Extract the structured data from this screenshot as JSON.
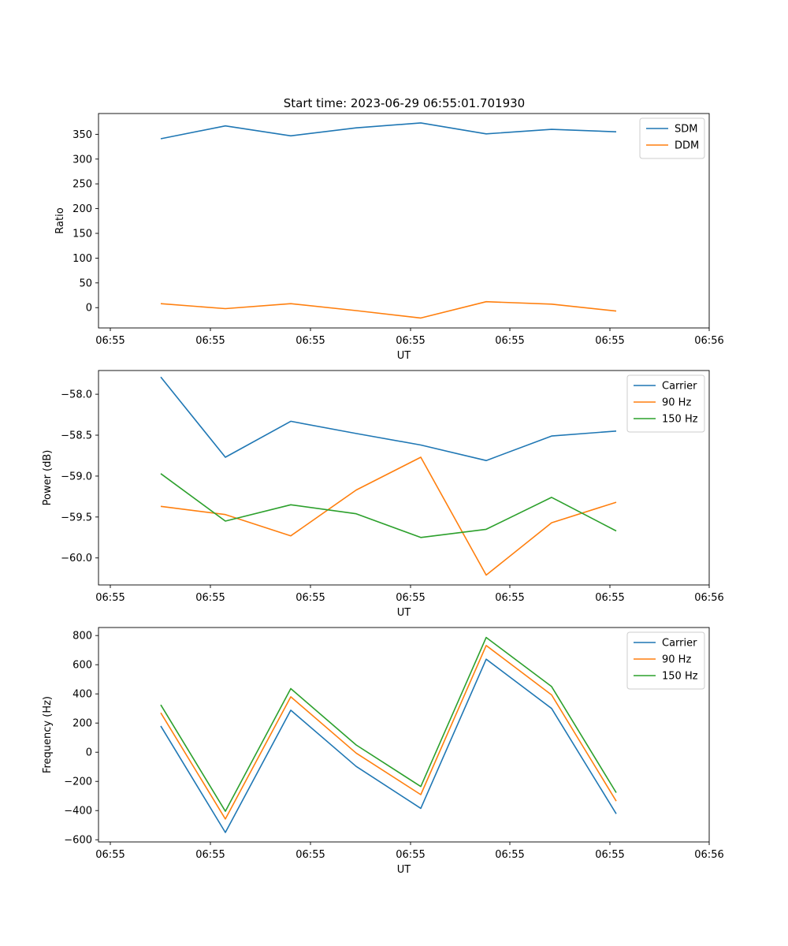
{
  "title": "Start time: 2023-06-29 06:55:01.701930",
  "colors": {
    "blue": "#1f77b4",
    "orange": "#ff7f0e",
    "green": "#2ca02c"
  },
  "chart_data": [
    {
      "type": "line",
      "title": "Start time: 2023-06-29 06:55:01.701930",
      "xlabel": "UT",
      "ylabel": "Ratio",
      "x_tick_labels": [
        "06:55",
        "06:55",
        "06:55",
        "06:55",
        "06:55",
        "06:55",
        "06:56"
      ],
      "y_ticks": [
        0,
        50,
        100,
        150,
        200,
        250,
        300,
        350
      ],
      "y_tick_labels": [
        "0",
        "50",
        "100",
        "150",
        "200",
        "250",
        "300",
        "350"
      ],
      "ylim": [
        -41,
        392
      ],
      "legend_position": "upper right",
      "grid": false,
      "series": [
        {
          "name": "SDM",
          "color": "#1f77b4",
          "values": [
            341,
            367,
            347,
            363,
            373,
            351,
            360,
            355
          ]
        },
        {
          "name": "DDM",
          "color": "#ff7f0e",
          "values": [
            8,
            -2,
            8,
            -6,
            -21,
            12,
            7,
            -7
          ]
        }
      ]
    },
    {
      "type": "line",
      "xlabel": "UT",
      "ylabel": "Power (dB)",
      "x_tick_labels": [
        "06:55",
        "06:55",
        "06:55",
        "06:55",
        "06:55",
        "06:55",
        "06:56"
      ],
      "y_ticks": [
        -60.0,
        -59.5,
        -59.0,
        -58.5,
        -58.0
      ],
      "y_tick_labels": [
        "−60.0",
        "−59.5",
        "−59.0",
        "−58.5",
        "−58.0"
      ],
      "ylim": [
        -60.33,
        -57.71
      ],
      "legend_position": "upper right",
      "grid": false,
      "series": [
        {
          "name": "Carrier",
          "color": "#1f77b4",
          "values": [
            -57.79,
            -58.77,
            -58.33,
            -58.48,
            -58.62,
            -58.81,
            -58.51,
            -58.45
          ]
        },
        {
          "name": "90 Hz",
          "color": "#ff7f0e",
          "values": [
            -59.37,
            -59.47,
            -59.73,
            -59.17,
            -58.77,
            -60.21,
            -59.57,
            -59.32
          ]
        },
        {
          "name": "150 Hz",
          "color": "#2ca02c",
          "values": [
            -58.97,
            -59.55,
            -59.35,
            -59.46,
            -59.75,
            -59.65,
            -59.26,
            -59.67
          ]
        }
      ]
    },
    {
      "type": "line",
      "xlabel": "UT",
      "ylabel": "Frequency (Hz)",
      "x_tick_labels": [
        "06:55",
        "06:55",
        "06:55",
        "06:55",
        "06:55",
        "06:55",
        "06:56"
      ],
      "y_ticks": [
        -600,
        -400,
        -200,
        0,
        200,
        400,
        600,
        800
      ],
      "y_tick_labels": [
        "−600",
        "−400",
        "−200",
        "0",
        "200",
        "400",
        "600",
        "800"
      ],
      "ylim": [
        -615,
        855
      ],
      "legend_position": "upper right",
      "grid": false,
      "series": [
        {
          "name": "Carrier",
          "color": "#1f77b4",
          "values": [
            180,
            -550,
            288,
            -97,
            -385,
            638,
            300,
            -422
          ]
        },
        {
          "name": "90 Hz",
          "color": "#ff7f0e",
          "values": [
            270,
            -458,
            380,
            -6,
            -291,
            732,
            393,
            -335
          ]
        },
        {
          "name": "150 Hz",
          "color": "#2ca02c",
          "values": [
            325,
            -405,
            436,
            50,
            -235,
            787,
            450,
            -277
          ]
        }
      ]
    }
  ]
}
